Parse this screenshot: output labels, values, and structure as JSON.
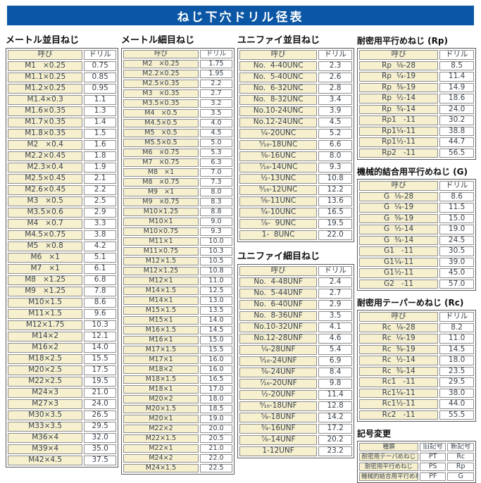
{
  "title": "ねじ下穴ドリル径表",
  "colors": {
    "banner": "#0b57a5",
    "cream": "#f6f0cf",
    "text": "#3a434c",
    "cell_border": "#8e8e8e",
    "outer_border": "#5a5a5a"
  },
  "headers": {
    "name": "呼び",
    "drill": "ドリル"
  },
  "metric_coarse": {
    "title": "メートル並目ねじ",
    "rows": [
      [
        "M1   ×0.25",
        "0.75"
      ],
      [
        "M1.1×0.25",
        "0.85"
      ],
      [
        "M1.2×0.25",
        "0.95"
      ],
      [
        "M1.4×0.3",
        "1.1"
      ],
      [
        "M1.6×0.35",
        "1.3"
      ],
      [
        "M1.7×0.35",
        "1.4"
      ],
      [
        "M1.8×0.35",
        "1.5"
      ],
      [
        "M2   ×0.4",
        "1.6"
      ],
      [
        "M2.2×0.45",
        "1.8"
      ],
      [
        "M2.3×0.4",
        "1.9"
      ],
      [
        "M2.5×0.45",
        "2.1"
      ],
      [
        "M2.6×0.45",
        "2.2"
      ],
      [
        "M3   ×0.5",
        "2.5"
      ],
      [
        "M3.5×0.6",
        "2.9"
      ],
      [
        "M4   ×0.7",
        "3.3"
      ],
      [
        "M4.5×0.75",
        "3.8"
      ],
      [
        "M5   ×0.8",
        "4.2"
      ],
      [
        "M6   ×1",
        "5.1"
      ],
      [
        "M7   ×1",
        "6.1"
      ],
      [
        "M8   ×1.25",
        "6.8"
      ],
      [
        "M9   ×1.25",
        "7.8"
      ],
      [
        "M10×1.5",
        "8.6"
      ],
      [
        "M11×1.5",
        "9.6"
      ],
      [
        "M12×1.75",
        "10.3"
      ],
      [
        "M14×2",
        "12.1"
      ],
      [
        "M16×2",
        "14.0"
      ],
      [
        "M18×2.5",
        "15.5"
      ],
      [
        "M20×2.5",
        "17.5"
      ],
      [
        "M22×2.5",
        "19.5"
      ],
      [
        "M24×3",
        "21.0"
      ],
      [
        "M27×3",
        "24.0"
      ],
      [
        "M30×3.5",
        "26.5"
      ],
      [
        "M33×3.5",
        "29.5"
      ],
      [
        "M36×4",
        "32.0"
      ],
      [
        "M39×4",
        "35.0"
      ],
      [
        "M42×4.5",
        "37.5"
      ]
    ]
  },
  "metric_fine": {
    "title": "メートル細目ねじ",
    "rows": [
      [
        "M2   ×0.25",
        "1.75"
      ],
      [
        "M2.2×0.25",
        "1.95"
      ],
      [
        "M2.5×0.35",
        "2.2"
      ],
      [
        "M3   ×0.35",
        "2.7"
      ],
      [
        "M3.5×0.35",
        "3.2"
      ],
      [
        "M4   ×0.5",
        "3.5"
      ],
      [
        "M4.5×0.5",
        "4.0"
      ],
      [
        "M5   ×0.5",
        "4.5"
      ],
      [
        "M5.5×0.5",
        "5.0"
      ],
      [
        "M6   ×0.75",
        "5.3"
      ],
      [
        "M7   ×0.75",
        "6.3"
      ],
      [
        "M8   ×1",
        "7.0"
      ],
      [
        "M8   ×0.75",
        "7.3"
      ],
      [
        "M9   ×1",
        "8.0"
      ],
      [
        "M9   ×0.75",
        "8.3"
      ],
      [
        "M10×1.25",
        "8.8"
      ],
      [
        "M10×1",
        "9.0"
      ],
      [
        "M10×0.75",
        "9.3"
      ],
      [
        "M11×1",
        "10.0"
      ],
      [
        "M11×0.75",
        "10.3"
      ],
      [
        "M12×1.5",
        "10.5"
      ],
      [
        "M12×1.25",
        "10.8"
      ],
      [
        "M12×1",
        "11.0"
      ],
      [
        "M14×1.5",
        "12.5"
      ],
      [
        "M14×1",
        "13.0"
      ],
      [
        "M15×1.5",
        "13.5"
      ],
      [
        "M15×1",
        "14.0"
      ],
      [
        "M16×1.5",
        "14.5"
      ],
      [
        "M16×1",
        "15.0"
      ],
      [
        "M17×1.5",
        "15.5"
      ],
      [
        "M17×1",
        "16.0"
      ],
      [
        "M18×2",
        "16.0"
      ],
      [
        "M18×1.5",
        "16.5"
      ],
      [
        "M18×1",
        "17.0"
      ],
      [
        "M20×2",
        "18.0"
      ],
      [
        "M20×1.5",
        "18.5"
      ],
      [
        "M20×1",
        "19.0"
      ],
      [
        "M22×2",
        "20.0"
      ],
      [
        "M22×1.5",
        "20.5"
      ],
      [
        "M22×1",
        "21.0"
      ],
      [
        "M24×2",
        "22.0"
      ],
      [
        "M24×1.5",
        "22.5"
      ]
    ]
  },
  "unified_coarse": {
    "title": "ユニファイ並目ねじ",
    "rows": [
      [
        "No.  4-40UNC",
        "2.3"
      ],
      [
        "No.  5-40UNC",
        "2.6"
      ],
      [
        "No.  6-32UNC",
        "2.8"
      ],
      [
        "No.  8-32UNC",
        "3.4"
      ],
      [
        "No.10-24UNC",
        "3.9"
      ],
      [
        "No.12-24UNC",
        "4.5"
      ],
      [
        "¹⁄₄-20UNC",
        "5.2"
      ],
      [
        "⁵⁄₁₆-18UNC",
        "6.6"
      ],
      [
        "³⁄₈-16UNC",
        "8.0"
      ],
      [
        "⁷⁄₁₆-14UNC",
        "9.3"
      ],
      [
        "¹⁄₂-13UNC",
        "10.8"
      ],
      [
        "⁹⁄₁₆-12UNC",
        "12.2"
      ],
      [
        "⁵⁄₈-11UNC",
        "13.6"
      ],
      [
        "³⁄₄-10UNC",
        "16.5"
      ],
      [
        "⁷⁄₈-  9UNC",
        "19.5"
      ],
      [
        "1-  8UNC",
        "22.0"
      ]
    ]
  },
  "unified_fine": {
    "title": "ユニファイ細目ねじ",
    "rows": [
      [
        "No.  4-48UNF",
        "2.4"
      ],
      [
        "No.  5-44UNF",
        "2.7"
      ],
      [
        "No.  6-40UNF",
        "2.9"
      ],
      [
        "No.  8-36UNF",
        "3.5"
      ],
      [
        "No.10-32UNF",
        "4.1"
      ],
      [
        "No.12-28UNF",
        "4.6"
      ],
      [
        "¹⁄₄-28UNF",
        "5.4"
      ],
      [
        "⁵⁄₁₆-24UNF",
        "6.9"
      ],
      [
        "³⁄₈-24UNF",
        "8.4"
      ],
      [
        "⁷⁄₁₆-20UNF",
        "9.8"
      ],
      [
        "¹⁄₂-20UNF",
        "11.4"
      ],
      [
        "⁹⁄₁₆-18UNF",
        "12.8"
      ],
      [
        "⁵⁄₈-18UNF",
        "14.2"
      ],
      [
        "³⁄₄-16UNF",
        "17.2"
      ],
      [
        "⁷⁄₈-14UNF",
        "20.2"
      ],
      [
        "1-12UNF",
        "23.2"
      ]
    ]
  },
  "rp": {
    "title": "耐密用平行めねじ (Rp)",
    "rows": [
      [
        "Rp  ¹⁄₈-28",
        "8.5"
      ],
      [
        "Rp  ¹⁄₄-19",
        "11.4"
      ],
      [
        "Rp  ³⁄₈-19",
        "14.9"
      ],
      [
        "Rp  ¹⁄₂-14",
        "18.6"
      ],
      [
        "Rp  ³⁄₄-14",
        "24.0"
      ],
      [
        "Rp1   -11",
        "30.2"
      ],
      [
        "Rp1¹⁄₄-11",
        "38.8"
      ],
      [
        "Rp1¹⁄₂-11",
        "44.7"
      ],
      [
        "Rp2   -11",
        "56.5"
      ]
    ]
  },
  "g": {
    "title": "機械的結合用平行めねじ (G)",
    "rows": [
      [
        "G  ¹⁄₈-28",
        "8.6"
      ],
      [
        "G  ¹⁄₄-19",
        "11.5"
      ],
      [
        "G  ³⁄₈-19",
        "15.0"
      ],
      [
        "G  ¹⁄₂-14",
        "19.0"
      ],
      [
        "G  ³⁄₄-14",
        "24.5"
      ],
      [
        "G1   -11",
        "30.5"
      ],
      [
        "G1¹⁄₄-11",
        "39.0"
      ],
      [
        "G1¹⁄₂-11",
        "45.0"
      ],
      [
        "G2   -11",
        "57.0"
      ]
    ]
  },
  "rc": {
    "title": "耐密用テーパーめねじ (Rc)",
    "rows": [
      [
        "Rc  ¹⁄₈-28",
        "8.2"
      ],
      [
        "Rc  ¹⁄₄-19",
        "11.0"
      ],
      [
        "Rc  ³⁄₈-19",
        "14.5"
      ],
      [
        "Rc  ¹⁄₂-14",
        "18.0"
      ],
      [
        "Rc  ³⁄₄-14",
        "23.5"
      ],
      [
        "Rc1   -11",
        "29.5"
      ],
      [
        "Rc1¹⁄₄-11",
        "38.0"
      ],
      [
        "Rc1¹⁄₂-11",
        "44.0"
      ],
      [
        "Rc2   -11",
        "55.5"
      ]
    ]
  },
  "symbol_change": {
    "title": "記号変更",
    "headers": [
      "種類",
      "旧記号",
      "新記号"
    ],
    "rows": [
      [
        "耐密用テーパめねじ",
        "PT",
        "Rc"
      ],
      [
        "耐密用平行めねじ",
        "PS",
        "Rp"
      ],
      [
        "機械的結合用平行めねじ",
        "PF",
        "G"
      ]
    ]
  }
}
